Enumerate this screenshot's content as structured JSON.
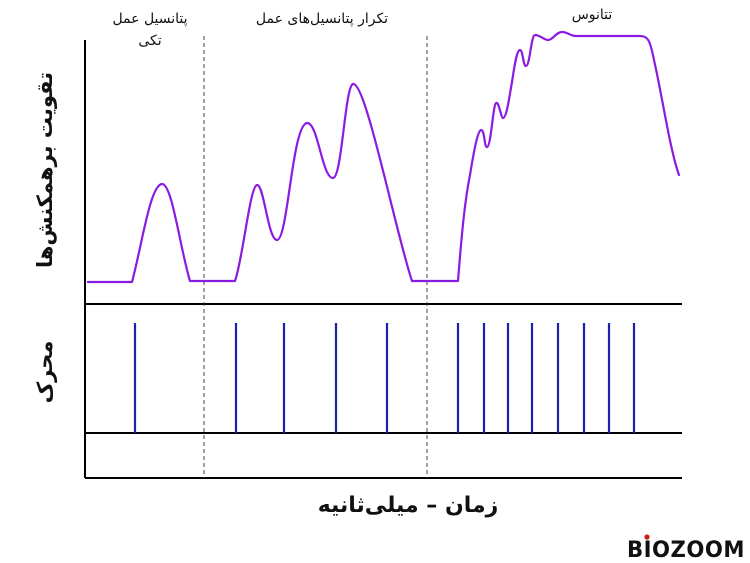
{
  "labels": {
    "single": [
      "پتانسیل عمل",
      "تکی"
    ],
    "repeated": "تکرار پتانسیل‌های عمل",
    "tetanus": "تتانوس",
    "y_force": "تقویت برهمکنش‌ها",
    "y_stimulus": "محرک",
    "x_axis": "زمان – میلی‌ثانیه"
  },
  "logo": {
    "text": "BIOZOOM"
  },
  "colors": {
    "curve": "#8a1be0",
    "stimulus": "#1a22b0",
    "axis": "#000000",
    "divider": "#444444"
  },
  "stimulus_events": {
    "single": 1,
    "repeated": 4,
    "tetanus": 8
  }
}
